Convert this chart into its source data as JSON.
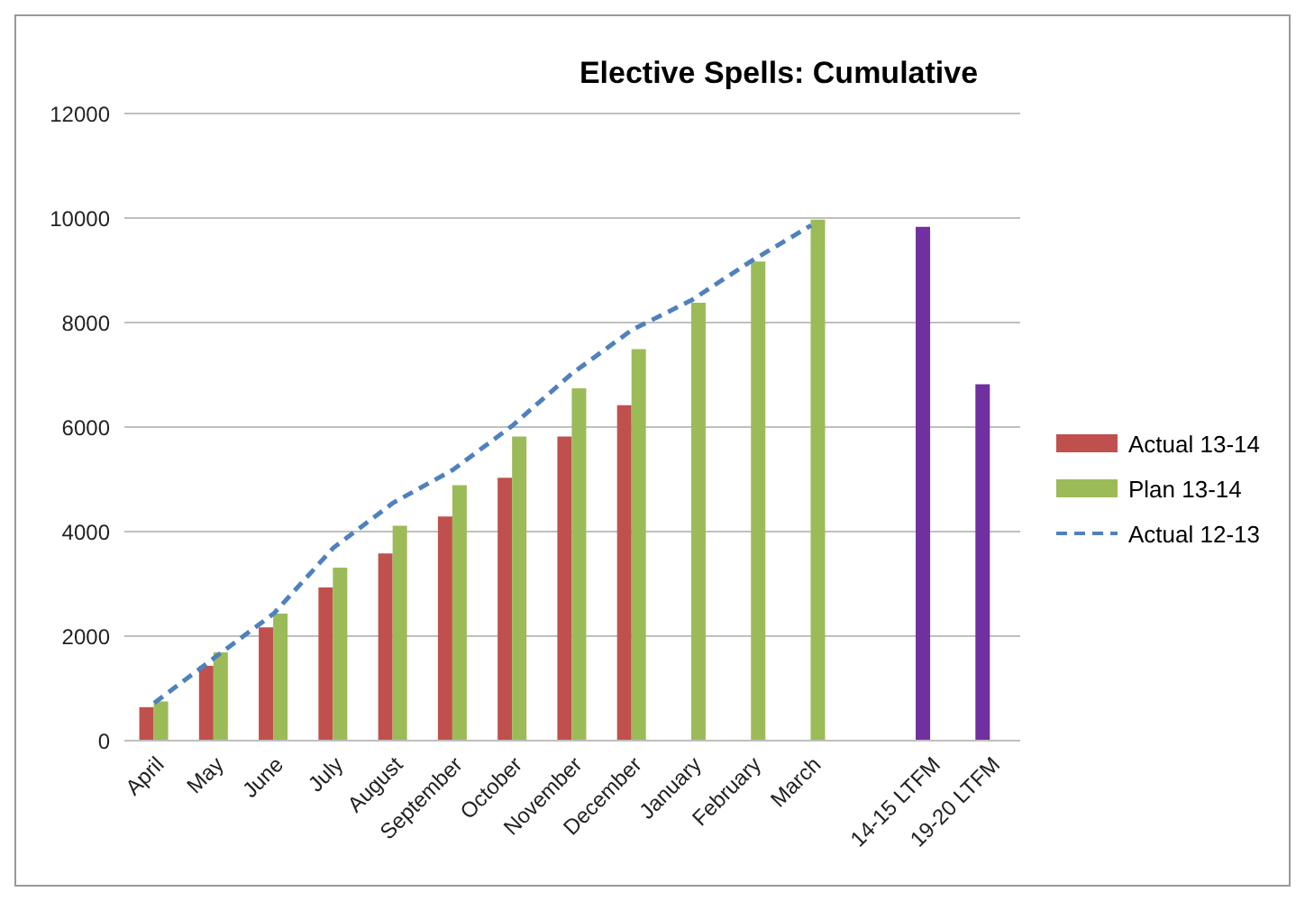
{
  "chart_data": {
    "type": "bar",
    "title": "Elective Spells: Cumulative",
    "categories": [
      "April",
      "May",
      "June",
      "July",
      "August",
      "September",
      "October",
      "November",
      "December",
      "January",
      "February",
      "March",
      null,
      "14-15 LTFM",
      "19-20 LTFM"
    ],
    "series": [
      {
        "name": "Actual 13-14",
        "color": "#c0504d",
        "values": [
          640,
          1430,
          2170,
          2930,
          3580,
          4290,
          5030,
          5820,
          6420,
          null,
          null,
          null,
          null,
          null,
          null
        ]
      },
      {
        "name": "Plan 13-14",
        "color": "#9bbb59",
        "values": [
          750,
          1690,
          2430,
          3310,
          4110,
          4890,
          5820,
          6740,
          7490,
          8380,
          9170,
          9970,
          null,
          null,
          null
        ]
      },
      {
        "color": "#7030a0",
        "values": [
          null,
          null,
          null,
          null,
          null,
          null,
          null,
          null,
          null,
          null,
          null,
          null,
          null,
          9830,
          6820
        ]
      },
      {
        "name": "Actual 12-13",
        "type": "line",
        "color": "#4f81bd",
        "line_style": "dashed",
        "marker": "none",
        "values": [
          720,
          1580,
          2430,
          3690,
          4550,
          5180,
          6030,
          7030,
          7860,
          8430,
          9180,
          9860,
          null,
          null,
          null
        ]
      }
    ],
    "ylim": [
      0,
      12000
    ],
    "yticks": [
      0,
      2000,
      4000,
      6000,
      8000,
      10000,
      12000
    ],
    "grid": "y",
    "legend": "right"
  }
}
